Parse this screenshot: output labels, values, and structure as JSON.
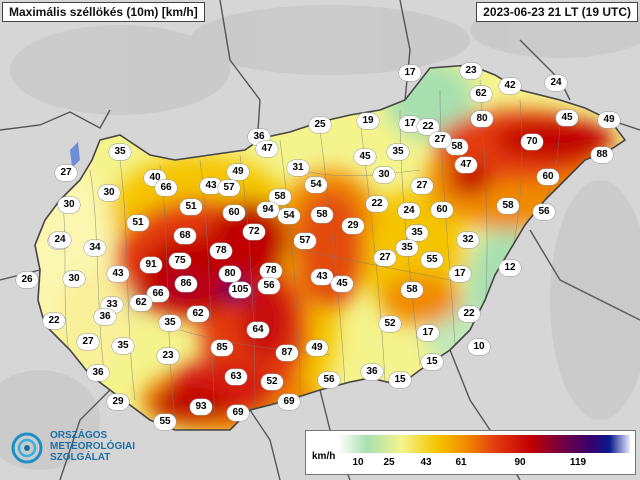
{
  "header": {
    "title": "Maximális széllökés (10m) [km/h]",
    "datetime": "2023-06-23 21 LT (19 UTC)"
  },
  "legend": {
    "unit": "km/h",
    "ticks": [
      "10",
      "25",
      "43",
      "61",
      "90",
      "119"
    ],
    "colors": [
      "#ffffff",
      "#a8e0b0",
      "#f4f48c",
      "#f5c400",
      "#f08a00",
      "#e33b10",
      "#c00000",
      "#7a0040",
      "#3a006a",
      "#0b1a8a",
      "#cfd3ff"
    ]
  },
  "logo": {
    "line1": "ORSZÁGOS",
    "line2": "METEOROLÓGIAI",
    "line3": "SZOLGÁLAT"
  },
  "stations": [
    {
      "v": "17"
    },
    {
      "v": "23"
    },
    {
      "v": "42"
    },
    {
      "v": "24"
    },
    {
      "v": "62"
    },
    {
      "v": "80"
    },
    {
      "v": "45"
    },
    {
      "v": "49"
    },
    {
      "v": "25"
    },
    {
      "v": "19"
    },
    {
      "v": "17"
    },
    {
      "v": "22"
    },
    {
      "v": "36"
    },
    {
      "v": "47"
    },
    {
      "v": "70"
    },
    {
      "v": "88"
    },
    {
      "v": "35"
    },
    {
      "v": "45"
    },
    {
      "v": "35"
    },
    {
      "v": "58"
    },
    {
      "v": "47"
    },
    {
      "v": "27"
    },
    {
      "v": "49"
    },
    {
      "v": "31"
    },
    {
      "v": "30"
    },
    {
      "v": "27"
    },
    {
      "v": "40"
    },
    {
      "v": "66"
    },
    {
      "v": "43"
    },
    {
      "v": "57"
    },
    {
      "v": "54"
    },
    {
      "v": "30"
    },
    {
      "v": "60"
    },
    {
      "v": "58"
    },
    {
      "v": "30"
    },
    {
      "v": "58"
    },
    {
      "v": "22"
    },
    {
      "v": "24"
    },
    {
      "v": "56"
    },
    {
      "v": "51"
    },
    {
      "v": "60"
    },
    {
      "v": "94"
    },
    {
      "v": "54"
    },
    {
      "v": "58"
    },
    {
      "v": "60"
    },
    {
      "v": "35"
    },
    {
      "v": "32"
    },
    {
      "v": "51"
    },
    {
      "v": "72"
    },
    {
      "v": "29"
    },
    {
      "v": "24"
    },
    {
      "v": "68"
    },
    {
      "v": "57"
    },
    {
      "v": "35"
    },
    {
      "v": "55"
    },
    {
      "v": "34"
    },
    {
      "v": "78"
    },
    {
      "v": "27"
    },
    {
      "v": "12"
    },
    {
      "v": "91"
    },
    {
      "v": "75"
    },
    {
      "v": "17"
    },
    {
      "v": "43"
    },
    {
      "v": "80"
    },
    {
      "v": "78"
    },
    {
      "v": "43"
    },
    {
      "v": "45"
    },
    {
      "v": "26"
    },
    {
      "v": "30"
    },
    {
      "v": "86"
    },
    {
      "v": "105"
    },
    {
      "v": "56"
    },
    {
      "v": "58"
    },
    {
      "v": "66"
    },
    {
      "v": "33"
    },
    {
      "v": "62"
    },
    {
      "v": "22"
    },
    {
      "v": "36"
    },
    {
      "v": "62"
    },
    {
      "v": "35"
    },
    {
      "v": "52"
    },
    {
      "v": "17"
    },
    {
      "v": "64"
    },
    {
      "v": "27"
    },
    {
      "v": "35"
    },
    {
      "v": "85"
    },
    {
      "v": "49"
    },
    {
      "v": "10"
    },
    {
      "v": "23"
    },
    {
      "v": "87"
    },
    {
      "v": "15"
    },
    {
      "v": "36"
    },
    {
      "v": "63"
    },
    {
      "v": "56"
    },
    {
      "v": "36"
    },
    {
      "v": "15"
    },
    {
      "v": "52"
    },
    {
      "v": "29"
    },
    {
      "v": "93"
    },
    {
      "v": "69"
    },
    {
      "v": "55"
    },
    {
      "v": "69"
    },
    {
      "v": "22"
    },
    {
      "v": "27"
    },
    {
      "v": "24"
    }
  ]
}
